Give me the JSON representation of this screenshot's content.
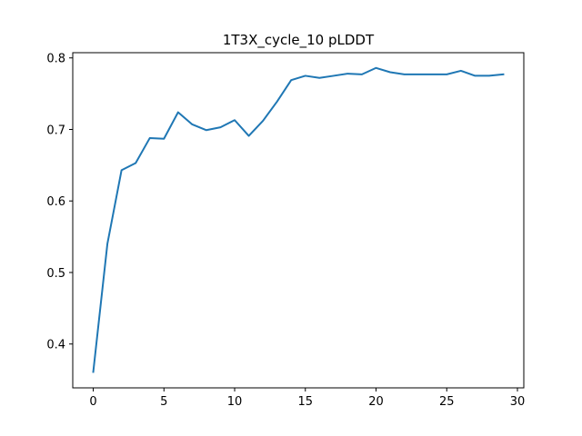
{
  "chart_data": {
    "type": "line",
    "title": "1T3X_cycle_10 pLDDT",
    "xlabel": "",
    "ylabel": "",
    "xlim": [
      -1.45,
      30.45
    ],
    "ylim": [
      0.3387,
      0.8073
    ],
    "x_ticks": [
      0,
      5,
      10,
      15,
      20,
      25,
      30
    ],
    "x_tick_labels": [
      "0",
      "5",
      "10",
      "15",
      "20",
      "25",
      "30"
    ],
    "y_ticks": [
      0.4,
      0.5,
      0.6,
      0.7,
      0.8
    ],
    "y_tick_labels": [
      "0.4",
      "0.5",
      "0.6",
      "0.7",
      "0.8"
    ],
    "grid": false,
    "legend": "none",
    "series": [
      {
        "color": "#1f77b4",
        "x": [
          0,
          1,
          2,
          3,
          4,
          5,
          6,
          7,
          8,
          9,
          10,
          11,
          12,
          13,
          14,
          15,
          16,
          17,
          18,
          19,
          20,
          21,
          22,
          23,
          24,
          25,
          26,
          27,
          28,
          29
        ],
        "y": [
          0.361,
          0.54,
          0.643,
          0.653,
          0.688,
          0.687,
          0.724,
          0.707,
          0.699,
          0.703,
          0.713,
          0.691,
          0.712,
          0.739,
          0.769,
          0.775,
          0.772,
          0.775,
          0.778,
          0.777,
          0.786,
          0.78,
          0.777,
          0.777,
          0.777,
          0.777,
          0.782,
          0.775,
          0.775,
          0.777
        ]
      }
    ]
  }
}
